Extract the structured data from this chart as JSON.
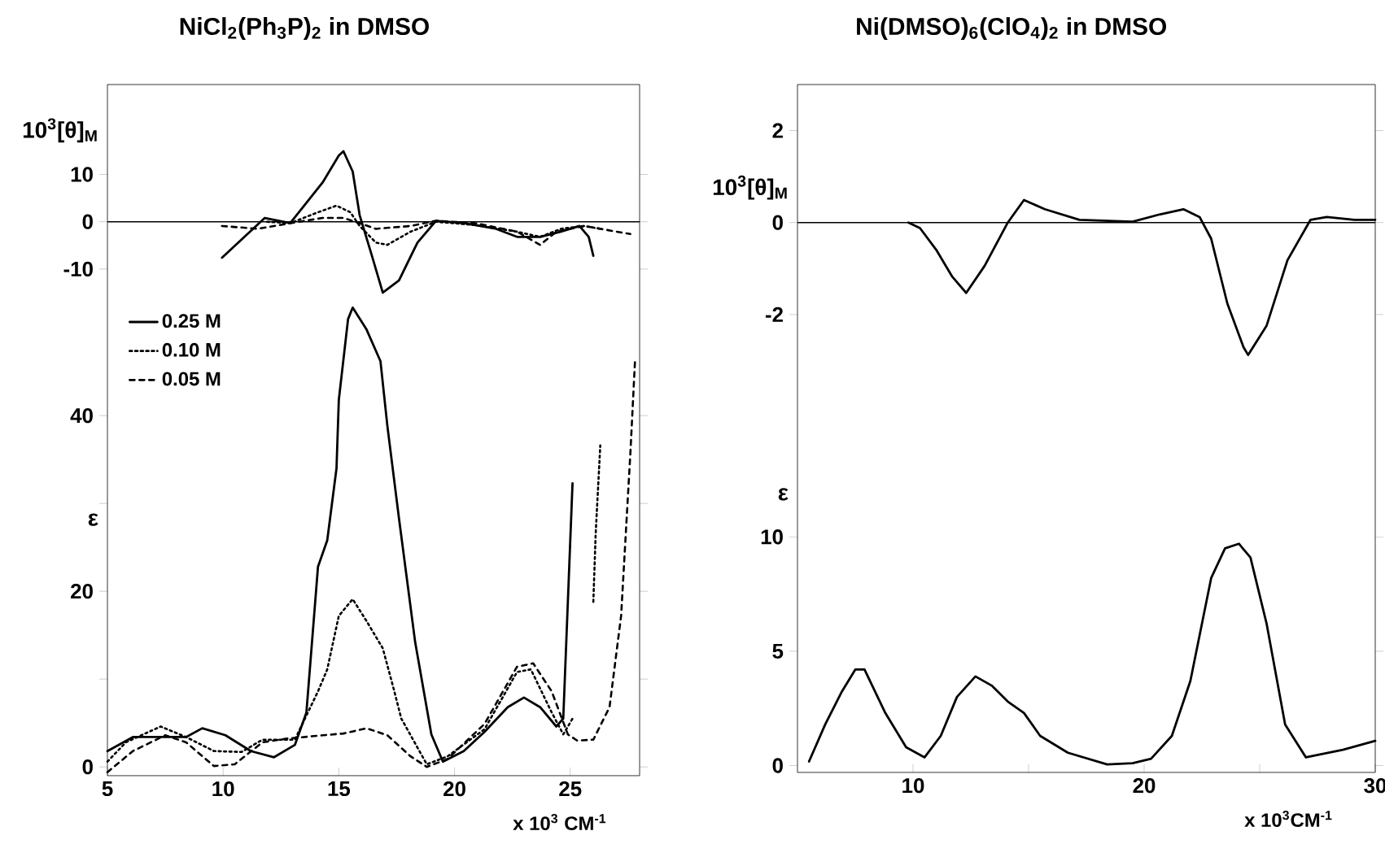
{
  "chart_data": [
    {
      "type": "line",
      "title": "NiCl$_{2}$(Ph$_{3}$P)$_{2}$ in DMSO",
      "ylabel": "10$^{3}$[θ]$_{M}$",
      "xlim": [
        5,
        28
      ],
      "ylim": [
        -15,
        29
      ],
      "yticks": [
        -10,
        0,
        10
      ],
      "tick_labels": "y",
      "ref_lines": [
        {
          "axis": "y",
          "value": 0,
          "color": "#000000"
        }
      ],
      "series": [
        {
          "color": "#000000",
          "line_style": "solid",
          "x": [
            9.95,
            11.8,
            12.9,
            14.3,
            15.0,
            15.2,
            15.6,
            15.9,
            16.4,
            16.9,
            17.6,
            18.4,
            19.2,
            20.4,
            21.8,
            22.7,
            23.7,
            24.6,
            25.4,
            25.8,
            26.0
          ],
          "values": [
            -7.6,
            0.8,
            -0.3,
            8.3,
            14.0,
            14.9,
            10.6,
            1.4,
            -6.7,
            -15.0,
            -12.4,
            -4.4,
            0.2,
            -0.3,
            -1.5,
            -3.2,
            -3.2,
            -2.1,
            -0.9,
            -3.2,
            -7.2
          ]
        },
        {
          "color": "#000000",
          "line_style": "dotted",
          "x": [
            11.9,
            12.9,
            14.1,
            14.9,
            15.5,
            15.9,
            16.6,
            17.1,
            18.1,
            19.2,
            20.9,
            22.7,
            23.7,
            24.6,
            25.6,
            26.3
          ],
          "values": [
            0,
            -0.3,
            2.0,
            3.4,
            2.0,
            -0.9,
            -4.4,
            -4.9,
            -2.1,
            0,
            -0.7,
            -2.1,
            -3.2,
            -1.5,
            -0.9,
            -1.5
          ]
        },
        {
          "color": "#000000",
          "line_style": "dashed",
          "x": [
            9.95,
            11.5,
            12.9,
            14.3,
            15.2,
            15.9,
            16.6,
            18.1,
            19.2,
            20.9,
            22.7,
            23.7,
            24.4,
            25.6,
            27.6
          ],
          "values": [
            -0.9,
            -1.5,
            -0.3,
            0.8,
            0.8,
            -0.3,
            -1.5,
            -0.9,
            0.2,
            -0.3,
            -2.1,
            -4.9,
            -2.1,
            -0.9,
            -2.6
          ]
        }
      ]
    },
    {
      "type": "line",
      "ylabel": "ε",
      "xlabel": "x 10$^{3}$ CM$^{-1}$",
      "xlim": [
        5,
        28
      ],
      "ylim": [
        -1,
        54
      ],
      "xticks": [
        5,
        10,
        15,
        20,
        25
      ],
      "yticks": [
        0,
        {
          "value": 10,
          "label": null
        },
        20,
        {
          "value": 30,
          "label": null
        },
        40
      ],
      "legend": "top left",
      "series": [
        {
          "name": "0.25 M",
          "color": "#000000",
          "line_style": "solid",
          "x": [
            5,
            6.1,
            7.3,
            8.4,
            9.1,
            10.1,
            11.2,
            12.2,
            13.1,
            13.6,
            14.1,
            14.5,
            14.9,
            15.0,
            15.4,
            15.6,
            16.2,
            16.8,
            17.1,
            17.6,
            18.3,
            19.0,
            19.5,
            20.4,
            21.3,
            22.3,
            23.0,
            23.7,
            24.4,
            24.7,
            25.1
          ],
          "values": [
            1.8,
            3.4,
            3.4,
            3.4,
            4.4,
            3.6,
            1.8,
            1.1,
            2.5,
            6.2,
            22.8,
            25.8,
            34,
            41.8,
            51,
            52.3,
            49.8,
            46.2,
            38.8,
            28.3,
            14.2,
            3.7,
            0.6,
            1.8,
            4.0,
            6.8,
            7.9,
            6.8,
            4.6,
            5.5,
            32.3
          ]
        },
        {
          "name": "0.10 M",
          "color": "#000000",
          "line_style": "dotted",
          "x": [
            5,
            5.8,
            7.3,
            8.4,
            9.6,
            10.8,
            11.7,
            13.1,
            14.1,
            14.5,
            15.0,
            15.6,
            16.2,
            16.9,
            17.4,
            17.7,
            18.8,
            19.7,
            21.3,
            22.7,
            23.3,
            24.2,
            24.7,
            25.1,
            25.5,
            26.0,
            26.1,
            26.3
          ],
          "values": [
            0.6,
            2.8,
            4.6,
            3.4,
            1.8,
            1.7,
            3.1,
            3.1,
            8.6,
            11.1,
            17.2,
            19.1,
            16.6,
            13.5,
            8.6,
            5.5,
            0.3,
            1.2,
            4.3,
            10.8,
            11.1,
            6.2,
            3.7,
            5.5,
            null,
            18.8,
            26.5,
            36.6
          ]
        },
        {
          "name": "0.05 M",
          "color": "#000000",
          "line_style": "dashed",
          "x": [
            5,
            6.1,
            7.5,
            8.4,
            9.6,
            10.5,
            11.7,
            12.7,
            14.3,
            15.2,
            16.2,
            17.1,
            18.1,
            18.8,
            19.7,
            21.3,
            22.7,
            23.4,
            24.2,
            24.9,
            25.3,
            26.0,
            26.7,
            27.2,
            27.6,
            27.8
          ],
          "values": [
            -0.6,
            1.8,
            3.6,
            2.8,
            0.1,
            0.3,
            2.8,
            3.2,
            3.6,
            3.8,
            4.4,
            3.6,
            1.2,
            0,
            0.9,
            4.9,
            11.4,
            11.8,
            8.6,
            3.7,
            3.0,
            3.1,
            6.8,
            17.2,
            35.7,
            46.2
          ]
        }
      ]
    },
    {
      "type": "line",
      "title": "Ni(DMSO)$_{6}$(ClO$_{4}$)$_{2}$ in DMSO",
      "ylabel": "10$^{3}$[θ]$_{M}$",
      "xlim": [
        5,
        30
      ],
      "ylim": [
        -4,
        3
      ],
      "yticks": [
        -2,
        0,
        2
      ],
      "tick_labels": "y",
      "ref_lines": [
        {
          "axis": "y",
          "value": 0,
          "color": "#000000"
        }
      ],
      "series": [
        {
          "color": "#000000",
          "line_style": "solid",
          "x": [
            9.8,
            10.3,
            11.0,
            11.7,
            12.3,
            13.1,
            14.1,
            14.8,
            15.7,
            17.2,
            19.5,
            20.7,
            21.7,
            22.4,
            22.9,
            23.6,
            24.3,
            24.5,
            25.3,
            26.2,
            27.2,
            27.9,
            29.1,
            30
          ],
          "values": [
            0,
            -0.12,
            -0.59,
            -1.18,
            -1.53,
            -0.94,
            0,
            0.49,
            0.29,
            0.06,
            0.02,
            0.18,
            0.29,
            0.12,
            -0.35,
            -1.76,
            -2.71,
            -2.88,
            -2.24,
            -0.82,
            0.06,
            0.12,
            0.06,
            0.06
          ]
        }
      ]
    },
    {
      "type": "line",
      "ylabel": "ε",
      "xlabel": "x 10$^{3}$CM$^{-1}$",
      "xlim": [
        5,
        30
      ],
      "ylim": [
        -0.3,
        15.7
      ],
      "xticks": [
        10,
        {
          "value": 15,
          "label": null
        },
        20,
        {
          "value": 25,
          "label": null
        },
        30
      ],
      "yticks": [
        0,
        5,
        10
      ],
      "series": [
        {
          "color": "#000000",
          "line_style": "solid",
          "x": [
            5.5,
            6.2,
            6.9,
            7.5,
            7.9,
            8.8,
            9.7,
            10.5,
            11.2,
            11.9,
            12.7,
            13.4,
            14.1,
            14.8,
            15.5,
            16.7,
            18.4,
            19.5,
            20.3,
            21.2,
            22.0,
            22.9,
            23.5,
            24.1,
            24.6,
            25.3,
            26.1,
            27.0,
            28.6,
            30.0
          ],
          "values": [
            0.18,
            1.8,
            3.2,
            4.2,
            4.2,
            2.3,
            0.8,
            0.36,
            1.3,
            3.0,
            3.9,
            3.5,
            2.8,
            2.3,
            1.3,
            0.56,
            0.05,
            0.1,
            0.3,
            1.3,
            3.7,
            8.2,
            9.5,
            9.7,
            9.1,
            6.2,
            1.8,
            0.36,
            0.69,
            1.08
          ]
        }
      ]
    }
  ]
}
